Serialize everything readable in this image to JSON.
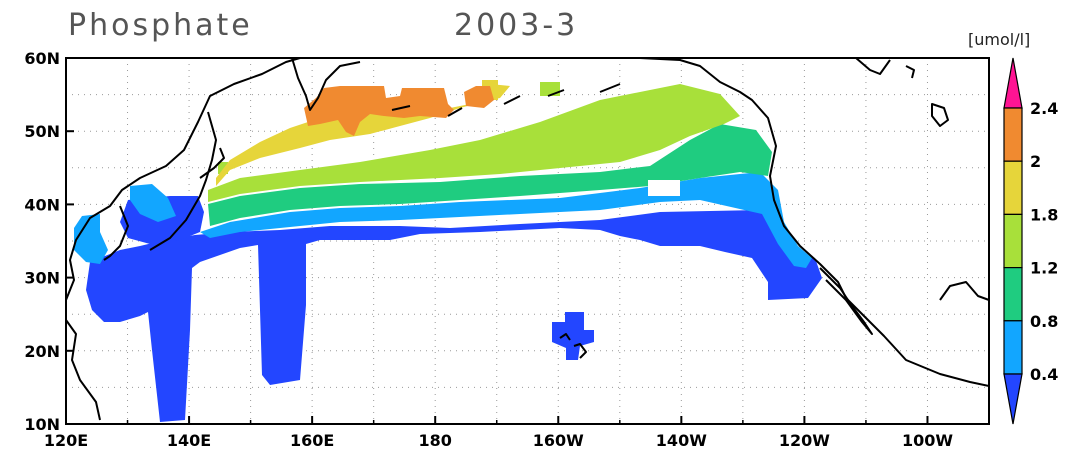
{
  "title": {
    "variable": "Phosphate",
    "date": "2003-3",
    "unit": "[umol/l]"
  },
  "axes": {
    "x_ticks": [
      "120E",
      "140E",
      "160E",
      "180",
      "160W",
      "140W",
      "120W",
      "100W"
    ],
    "y_ticks": [
      "60N",
      "50N",
      "40N",
      "30N",
      "20N",
      "10N"
    ],
    "lon_range": [
      120,
      270
    ],
    "lat_range": [
      10,
      60
    ],
    "grid": true
  },
  "colorbar": {
    "labels": [
      "2.4",
      "2",
      "1.8",
      "1.2",
      "0.8",
      "0.4"
    ],
    "colors": [
      "#ff1493",
      "#f08a30",
      "#e6d53a",
      "#a8e03a",
      "#1fcc80",
      "#12a6ff",
      "#2346ff"
    ],
    "extend": "both"
  }
}
